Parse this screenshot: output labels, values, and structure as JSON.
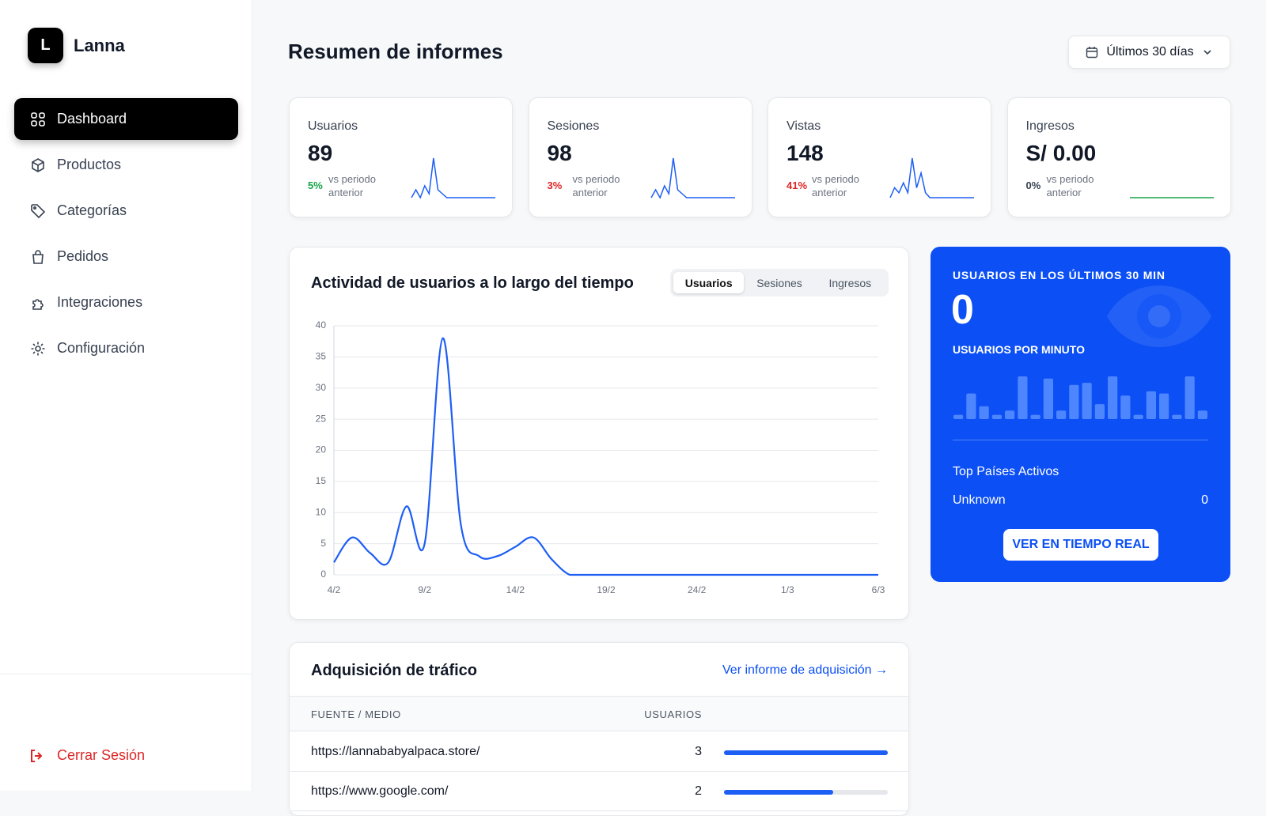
{
  "brand": {
    "logo": "L",
    "name": "Lanna"
  },
  "nav": {
    "items": [
      "Dashboard",
      "Productos",
      "Categorías",
      "Pedidos",
      "Integraciones",
      "Configuración"
    ],
    "active": 0
  },
  "logout": "Cerrar Sesión",
  "header": {
    "title": "Resumen de informes",
    "date_filter": "Últimos 30 días"
  },
  "kpis": [
    {
      "label": "Usuarios",
      "value": "89",
      "change": "5%",
      "note": "vs periodo anterior",
      "change_color": "#16a34a",
      "spark_color": "#1d5ef5",
      "spark": [
        0,
        2,
        0,
        3,
        1,
        10,
        2,
        1,
        0,
        0,
        0,
        0,
        0,
        0,
        0,
        0,
        0,
        0,
        0,
        0
      ]
    },
    {
      "label": "Sesiones",
      "value": "98",
      "change": "3%",
      "note": "vs periodo anterior",
      "change_color": "#dc2626",
      "spark_color": "#1d5ef5",
      "spark": [
        0,
        2,
        0,
        3,
        1,
        10,
        2,
        1,
        0,
        0,
        0,
        0,
        0,
        0,
        0,
        0,
        0,
        0,
        0,
        0
      ]
    },
    {
      "label": "Vistas",
      "value": "148",
      "change": "41%",
      "note": "vs periodo anterior",
      "change_color": "#dc2626",
      "spark_color": "#1d5ef5",
      "spark": [
        0,
        2,
        1,
        3,
        1,
        8,
        2,
        5,
        1,
        0,
        0,
        0,
        0,
        0,
        0,
        0,
        0,
        0,
        0,
        0
      ]
    },
    {
      "label": "Ingresos",
      "value": "S/ 0.00",
      "change": "0%",
      "note": "vs periodo anterior",
      "change_color": "#374151",
      "spark_color": "#16a34a",
      "spark": [
        0,
        0,
        0,
        0,
        0,
        0,
        0,
        0,
        0,
        0,
        0,
        0,
        0,
        0,
        0,
        0,
        0,
        0,
        0,
        0
      ]
    }
  ],
  "chart_data": {
    "type": "line",
    "title": "Actividad de usuarios a lo largo del tiempo",
    "tabs": [
      "Usuarios",
      "Sesiones",
      "Ingresos"
    ],
    "active_tab": 0,
    "categories": [
      "4/2",
      null,
      null,
      null,
      null,
      "9/2",
      null,
      null,
      null,
      null,
      "14/2",
      null,
      null,
      null,
      null,
      "19/2",
      null,
      null,
      null,
      null,
      "24/2",
      null,
      null,
      null,
      null,
      "1/3",
      null,
      null,
      null,
      null,
      "6/3"
    ],
    "series": [
      {
        "name": "Usuarios",
        "color": "#1d5ef5",
        "values": [
          2,
          6,
          3.5,
          2,
          11,
          5,
          38,
          8,
          3,
          3,
          4.5,
          6,
          2.5,
          0,
          0,
          0,
          0,
          0,
          0,
          0,
          0,
          0,
          0,
          0,
          0,
          0,
          0,
          0,
          0,
          0,
          0
        ]
      }
    ],
    "ylim": [
      0,
      40
    ],
    "yticks": [
      0,
      5,
      10,
      15,
      20,
      25,
      30,
      35,
      40
    ],
    "grid": true
  },
  "realtime": {
    "title": "USUARIOS EN LOS ÚLTIMOS 30 MIN",
    "value": "0",
    "subtitle": "USUARIOS POR MINUTO",
    "per_minute": [
      1,
      6,
      3,
      1,
      2,
      10,
      1,
      9.5,
      2,
      8,
      8.5,
      3.5,
      10,
      5.5,
      1,
      6.5,
      6,
      1,
      10,
      2
    ],
    "countries_title": "Top Países Activos",
    "countries": [
      [
        "Unknown",
        "0"
      ]
    ],
    "button": "VER EN TIEMPO REAL"
  },
  "traffic": {
    "title": "Adquisición de tráfico",
    "link": "Ver informe de adquisición →",
    "columns": [
      "FUENTE / MEDIO",
      "USUARIOS"
    ],
    "rows": [
      [
        "https://lannababyalpaca.store/",
        3
      ],
      [
        "https://www.google.com/",
        2
      ]
    ]
  }
}
